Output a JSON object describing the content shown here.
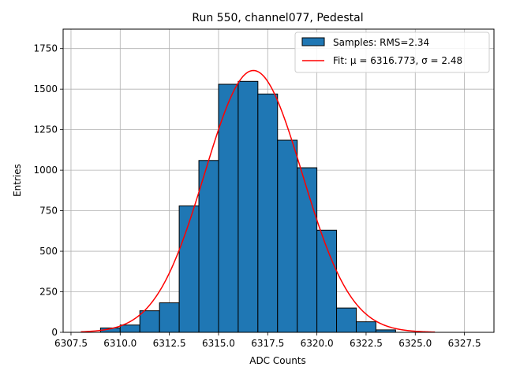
{
  "chart_data": {
    "type": "bar",
    "title": "Run 550, channel077, Pedestal",
    "xlabel": "ADC Counts",
    "ylabel": "Entries",
    "xlim": [
      6307.1,
      6329.0
    ],
    "ylim": [
      0,
      1870
    ],
    "xticks": [
      6307.5,
      6310.0,
      6312.5,
      6315.0,
      6317.5,
      6320.0,
      6322.5,
      6325.0,
      6327.5
    ],
    "xtick_labels": [
      "6307.5",
      "6310.0",
      "6312.5",
      "6315.0",
      "6317.5",
      "6320.0",
      "6322.5",
      "6325.0",
      "6327.5"
    ],
    "yticks": [
      0,
      250,
      500,
      750,
      1000,
      1250,
      1500,
      1750
    ],
    "ytick_labels": [
      "0",
      "250",
      "500",
      "750",
      "1000",
      "1250",
      "1500",
      "1750"
    ],
    "grid": true,
    "legend_position": "upper-right",
    "histogram": {
      "name": "Samples: RMS=2.34",
      "color": "#1f77b4",
      "edge_color": "#000000",
      "bin_edges": [
        6309.0,
        6310.0,
        6311.0,
        6312.0,
        6313.0,
        6314.0,
        6315.0,
        6316.0,
        6317.0,
        6318.0,
        6319.0,
        6320.0,
        6321.0,
        6322.0,
        6323.0,
        6324.0
      ],
      "values": [
        27,
        45,
        133,
        182,
        780,
        1060,
        1530,
        1548,
        1470,
        1185,
        1015,
        630,
        150,
        65,
        15
      ]
    },
    "fit": {
      "name": "Fit: μ = 6316.773, σ = 2.48",
      "color": "#ff0000",
      "mu": 6316.773,
      "sigma": 2.48,
      "amplitude": 1615,
      "x_range": [
        6308.0,
        6326.0
      ]
    }
  }
}
